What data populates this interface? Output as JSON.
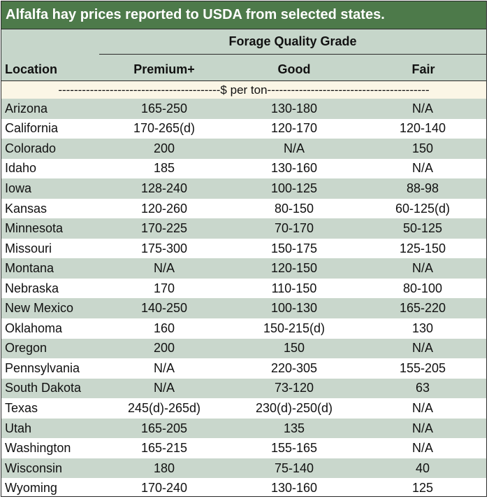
{
  "title": "Alfalfa hay prices reported to USDA from selected states.",
  "header": {
    "group_label": "Forage Quality Grade",
    "location_label": "Location",
    "grades": [
      "Premium+",
      "Good",
      "Fair"
    ]
  },
  "unit_row": "-----------------------------------------$ per ton-----------------------------------------",
  "rows": [
    {
      "location": "Arizona",
      "premium": "165-250",
      "good": "130-180",
      "fair": "N/A"
    },
    {
      "location": "California",
      "premium": "170-265(d)",
      "good": "120-170",
      "fair": "120-140"
    },
    {
      "location": "Colorado",
      "premium": "200",
      "good": "N/A",
      "fair": "150"
    },
    {
      "location": "Idaho",
      "premium": "185",
      "good": "130-160",
      "fair": "N/A"
    },
    {
      "location": "Iowa",
      "premium": "128-240",
      "good": "100-125",
      "fair": "88-98"
    },
    {
      "location": "Kansas",
      "premium": "120-260",
      "good": "80-150",
      "fair": "60-125(d)"
    },
    {
      "location": "Minnesota",
      "premium": "170-225",
      "good": "70-170",
      "fair": "50-125"
    },
    {
      "location": "Missouri",
      "premium": "175-300",
      "good": "150-175",
      "fair": "125-150"
    },
    {
      "location": "Montana",
      "premium": "N/A",
      "good": "120-150",
      "fair": "N/A"
    },
    {
      "location": "Nebraska",
      "premium": "170",
      "good": "110-150",
      "fair": "80-100"
    },
    {
      "location": "New Mexico",
      "premium": "140-250",
      "good": "100-130",
      "fair": "165-220"
    },
    {
      "location": "Oklahoma",
      "premium": "160",
      "good": "150-215(d)",
      "fair": "130"
    },
    {
      "location": "Oregon",
      "premium": "200",
      "good": "150",
      "fair": "N/A"
    },
    {
      "location": "Pennsylvania",
      "premium": "N/A",
      "good": "220-305",
      "fair": "155-205"
    },
    {
      "location": "South Dakota",
      "premium": "N/A",
      "good": "73-120",
      "fair": "63"
    },
    {
      "location": "Texas",
      "premium": "245(d)-265d)",
      "good": "230(d)-250(d)",
      "fair": "N/A"
    },
    {
      "location": "Utah",
      "premium": "165-205",
      "good": "135",
      "fair": "N/A"
    },
    {
      "location": "Washington",
      "premium": "165-215",
      "good": "155-165",
      "fair": "N/A"
    },
    {
      "location": "Wisconsin",
      "premium": "180",
      "good": "75-140",
      "fair": "40"
    },
    {
      "location": "Wyoming",
      "premium": "170-240",
      "good": "130-160",
      "fair": "125"
    }
  ],
  "colors": {
    "title_bg": "#4d7a4a",
    "header_bg": "#c6d6ca",
    "stripe_bg": "#c9d7cc",
    "unit_row_bg": "#fbf6e6"
  }
}
